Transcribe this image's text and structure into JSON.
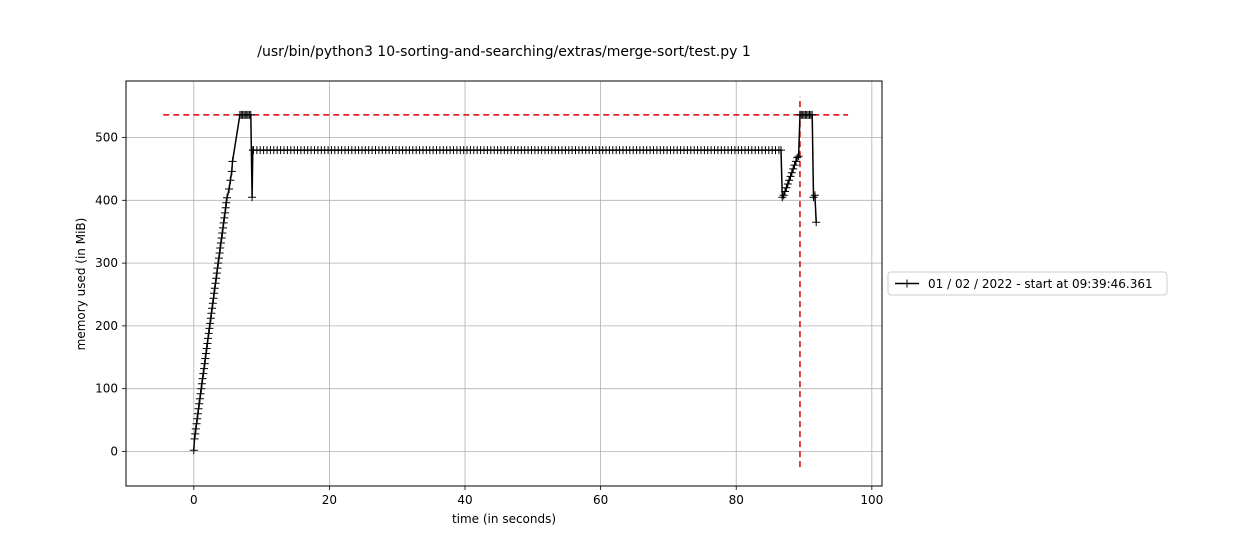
{
  "chart_data": {
    "type": "line",
    "title": "/usr/bin/python3 10-sorting-and-searching/extras/merge-sort/test.py 1",
    "xlabel": "time (in seconds)",
    "ylabel": "memory used (in MiB)",
    "xlim": [
      -10,
      101.5
    ],
    "ylim": [
      -55,
      590
    ],
    "xticks": [
      0,
      20,
      40,
      60,
      80,
      100
    ],
    "xtick_labels": [
      "0",
      "20",
      "40",
      "60",
      "80",
      "100"
    ],
    "yticks": [
      0,
      100,
      200,
      300,
      400,
      500
    ],
    "ytick_labels": [
      "0",
      "100",
      "200",
      "300",
      "400",
      "500"
    ],
    "grid": true,
    "legend_placement": "outside-right",
    "series": [
      {
        "name": "01 / 02 / 2022 - start at 09:39:46.361",
        "color": "#000000",
        "marker": "plus",
        "points": [
          [
            0.0,
            2
          ],
          [
            0.1,
            20
          ],
          [
            0.2,
            28
          ],
          [
            0.3,
            36
          ],
          [
            0.4,
            44
          ],
          [
            0.5,
            52
          ],
          [
            0.6,
            60
          ],
          [
            0.7,
            68
          ],
          [
            0.8,
            76
          ],
          [
            0.9,
            84
          ],
          [
            1.0,
            92
          ],
          [
            1.1,
            100
          ],
          [
            1.2,
            108
          ],
          [
            1.3,
            116
          ],
          [
            1.4,
            124
          ],
          [
            1.5,
            132
          ],
          [
            1.6,
            140
          ],
          [
            1.7,
            148
          ],
          [
            1.8,
            156
          ],
          [
            1.9,
            164
          ],
          [
            2.0,
            172
          ],
          [
            2.1,
            180
          ],
          [
            2.2,
            188
          ],
          [
            2.3,
            196
          ],
          [
            2.4,
            204
          ],
          [
            2.5,
            212
          ],
          [
            2.6,
            220
          ],
          [
            2.7,
            228
          ],
          [
            2.8,
            236
          ],
          [
            2.9,
            244
          ],
          [
            3.0,
            252
          ],
          [
            3.1,
            260
          ],
          [
            3.2,
            268
          ],
          [
            3.3,
            276
          ],
          [
            3.4,
            284
          ],
          [
            3.5,
            292
          ],
          [
            3.6,
            300
          ],
          [
            3.7,
            308
          ],
          [
            3.8,
            316
          ],
          [
            3.9,
            324
          ],
          [
            4.0,
            332
          ],
          [
            4.1,
            340
          ],
          [
            4.2,
            348
          ],
          [
            4.3,
            356
          ],
          [
            4.4,
            364
          ],
          [
            4.5,
            372
          ],
          [
            4.6,
            380
          ],
          [
            4.7,
            388
          ],
          [
            4.8,
            396
          ],
          [
            4.9,
            404
          ],
          [
            5.2,
            418
          ],
          [
            5.4,
            432
          ],
          [
            5.6,
            446
          ],
          [
            5.7,
            462
          ],
          [
            6.8,
            536
          ],
          [
            7.0,
            536
          ],
          [
            7.2,
            536
          ],
          [
            7.4,
            536
          ],
          [
            7.6,
            536
          ],
          [
            7.8,
            536
          ],
          [
            8.0,
            536
          ],
          [
            8.2,
            536
          ],
          [
            8.4,
            536
          ],
          [
            8.6,
            405
          ],
          [
            8.7,
            480
          ]
        ],
        "plateau": {
          "x_start": 8.8,
          "x_end": 86.4,
          "y": 480,
          "step": 0.5
        },
        "points_tail": [
          [
            86.6,
            480
          ],
          [
            86.8,
            405
          ],
          [
            87.0,
            408
          ],
          [
            87.2,
            414
          ],
          [
            87.4,
            420
          ],
          [
            87.6,
            426
          ],
          [
            87.8,
            432
          ],
          [
            88.0,
            438
          ],
          [
            88.2,
            444
          ],
          [
            88.4,
            450
          ],
          [
            88.6,
            456
          ],
          [
            88.8,
            462
          ],
          [
            89.0,
            468
          ],
          [
            89.2,
            470
          ],
          [
            89.4,
            536
          ],
          [
            89.6,
            536
          ],
          [
            89.8,
            536
          ],
          [
            90.0,
            536
          ],
          [
            90.2,
            536
          ],
          [
            90.4,
            536
          ],
          [
            90.6,
            536
          ],
          [
            90.8,
            536
          ],
          [
            91.0,
            536
          ],
          [
            91.2,
            536
          ],
          [
            91.4,
            405
          ],
          [
            91.6,
            408
          ],
          [
            91.8,
            365
          ]
        ]
      }
    ],
    "reference_lines": [
      {
        "orientation": "horizontal",
        "y": 536,
        "x_from": -4.5,
        "x_to": 96.5,
        "color": "#dd0000",
        "style": "dashed"
      },
      {
        "orientation": "vertical",
        "x": 89.4,
        "y_from": -25,
        "y_to": 565,
        "color": "#dd0000",
        "style": "dashed"
      }
    ]
  }
}
